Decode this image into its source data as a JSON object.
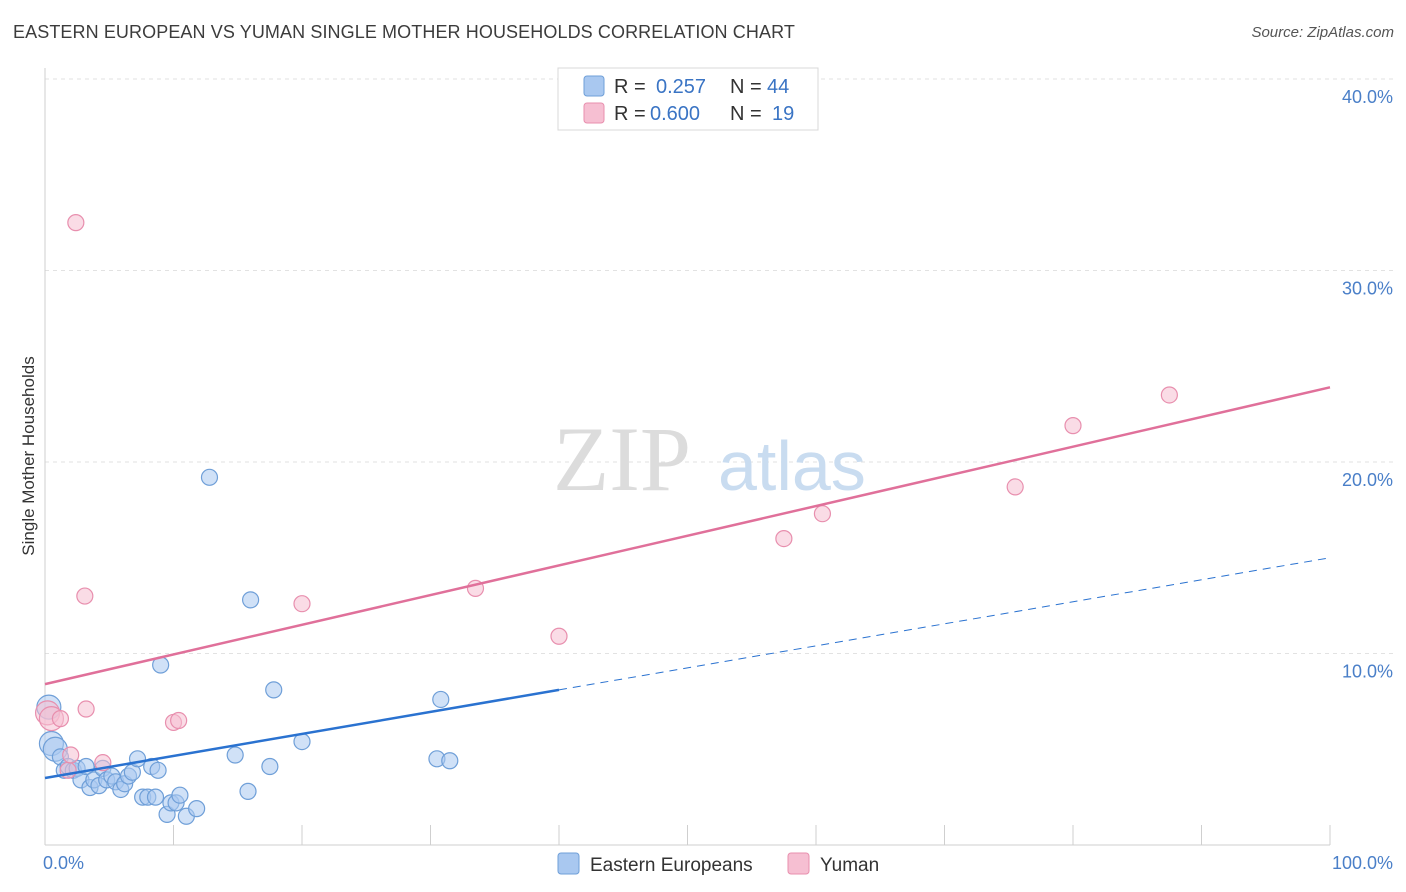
{
  "title": "EASTERN EUROPEAN VS YUMAN SINGLE MOTHER HOUSEHOLDS CORRELATION CHART",
  "source": "Source: ZipAtlas.com",
  "watermark": {
    "zip": "ZIP",
    "atlas": "atlas"
  },
  "colors": {
    "blue_fill": "#a9c8f0",
    "blue_stroke": "#6f9fd8",
    "blue_line": "#2a72d0",
    "pink_fill": "#f6bfd2",
    "pink_stroke": "#e88fae",
    "pink_line": "#e0709a",
    "grid": "#e2e2e2",
    "tick_text": "#4a7fc8"
  },
  "legend": {
    "rows": [
      {
        "r_label": "R =",
        "r_value": "0.257",
        "n_label": "N =",
        "n_value": "44"
      },
      {
        "r_label": "R =",
        "r_value": "0.600",
        "n_label": "N =",
        "n_value": "19"
      }
    ]
  },
  "chart_data": {
    "type": "scatter",
    "title": "EASTERN EUROPEAN VS YUMAN SINGLE MOTHER HOUSEHOLDS CORRELATION CHART",
    "xlabel": "",
    "ylabel": "Single Mother Households",
    "xlim": [
      0,
      100
    ],
    "ylim": [
      0,
      42
    ],
    "x_tick_labels": [
      "0.0%",
      "100.0%"
    ],
    "y_ticks": [
      10,
      20,
      30,
      40
    ],
    "y_tick_labels": [
      "10.0%",
      "20.0%",
      "30.0%",
      "40.0%"
    ],
    "grid": true,
    "legend_placement": "top-center",
    "series": [
      {
        "name": "Eastern Europeans",
        "color": "#a9c8f0",
        "points": [
          [
            0.3,
            7.2
          ],
          [
            0.5,
            5.3
          ],
          [
            0.8,
            5.0
          ],
          [
            1.2,
            4.6
          ],
          [
            1.5,
            3.9
          ],
          [
            1.8,
            4.1
          ],
          [
            2.2,
            3.9
          ],
          [
            2.5,
            4.0
          ],
          [
            2.8,
            3.4
          ],
          [
            3.2,
            4.1
          ],
          [
            3.5,
            3.0
          ],
          [
            3.8,
            3.4
          ],
          [
            4.2,
            3.1
          ],
          [
            4.5,
            4.0
          ],
          [
            4.8,
            3.4
          ],
          [
            5.2,
            3.6
          ],
          [
            5.5,
            3.3
          ],
          [
            5.9,
            2.9
          ],
          [
            6.2,
            3.2
          ],
          [
            6.5,
            3.6
          ],
          [
            6.8,
            3.8
          ],
          [
            7.2,
            4.5
          ],
          [
            7.6,
            2.5
          ],
          [
            8.0,
            2.5
          ],
          [
            8.3,
            4.1
          ],
          [
            8.6,
            2.5
          ],
          [
            8.8,
            3.9
          ],
          [
            9.0,
            9.4
          ],
          [
            9.5,
            1.6
          ],
          [
            9.8,
            2.2
          ],
          [
            10.2,
            2.2
          ],
          [
            10.5,
            2.6
          ],
          [
            11.0,
            1.5
          ],
          [
            11.8,
            1.9
          ],
          [
            12.8,
            19.2
          ],
          [
            14.8,
            4.7
          ],
          [
            15.8,
            2.8
          ],
          [
            16.0,
            12.8
          ],
          [
            17.5,
            4.1
          ],
          [
            17.8,
            8.1
          ],
          [
            20.0,
            5.4
          ],
          [
            30.5,
            4.5
          ],
          [
            30.8,
            7.6
          ],
          [
            31.5,
            4.4
          ]
        ]
      },
      {
        "name": "Yuman",
        "color": "#f6bfd2",
        "points": [
          [
            0.2,
            6.9
          ],
          [
            0.5,
            6.6
          ],
          [
            1.2,
            6.6
          ],
          [
            1.8,
            3.9
          ],
          [
            2.0,
            4.7
          ],
          [
            2.4,
            32.5
          ],
          [
            3.1,
            13.0
          ],
          [
            3.2,
            7.1
          ],
          [
            4.5,
            4.3
          ],
          [
            10.0,
            6.4
          ],
          [
            10.4,
            6.5
          ],
          [
            20.0,
            12.6
          ],
          [
            33.5,
            13.4
          ],
          [
            40.0,
            10.9
          ],
          [
            57.5,
            16.0
          ],
          [
            60.5,
            17.3
          ],
          [
            75.5,
            18.7
          ],
          [
            80.0,
            21.9
          ],
          [
            87.5,
            23.5
          ]
        ]
      }
    ],
    "trend_lines": [
      {
        "series": "Eastern Europeans",
        "x_solid": [
          0,
          40
        ],
        "x_dashed": [
          40,
          100
        ],
        "y_at_x0": 3.5,
        "y_at_x100": 15.0
      },
      {
        "series": "Yuman",
        "x": [
          0,
          100
        ],
        "y_at_x0": 8.4,
        "y_at_x100": 23.9
      }
    ]
  }
}
